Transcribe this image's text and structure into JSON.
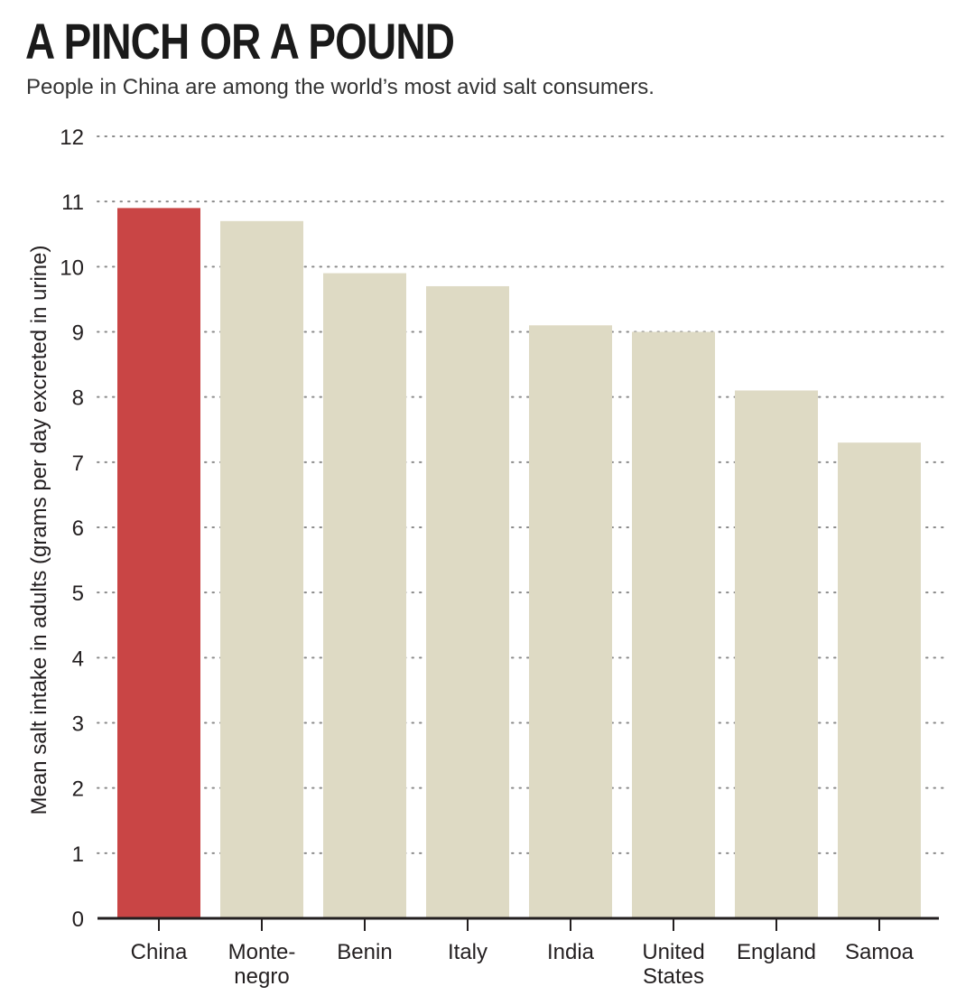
{
  "chart_data": {
    "type": "bar",
    "title": "A PINCH OR A POUND",
    "subtitle": "People in China are among the world’s most avid salt consumers.",
    "ylabel": "Mean salt intake in adults (grams per day excreted in urine)",
    "xlabel": "",
    "ylim": [
      0,
      12
    ],
    "yticks": [
      0,
      1,
      2,
      3,
      4,
      5,
      6,
      7,
      8,
      9,
      10,
      11,
      12
    ],
    "grid": "dotted horizontal",
    "categories": [
      [
        "China"
      ],
      [
        "Monte-",
        "negro"
      ],
      [
        "Benin"
      ],
      [
        "Italy"
      ],
      [
        "India"
      ],
      [
        "United",
        "States"
      ],
      [
        "England"
      ],
      [
        "Samoa"
      ]
    ],
    "values": [
      10.9,
      10.7,
      9.9,
      9.7,
      9.1,
      9.0,
      8.1,
      7.3
    ],
    "colors": {
      "highlight": "#c94545",
      "default": "#dedac4",
      "axis": "#231f20",
      "grid": "#8a8a8a"
    },
    "highlight_index": 0
  }
}
